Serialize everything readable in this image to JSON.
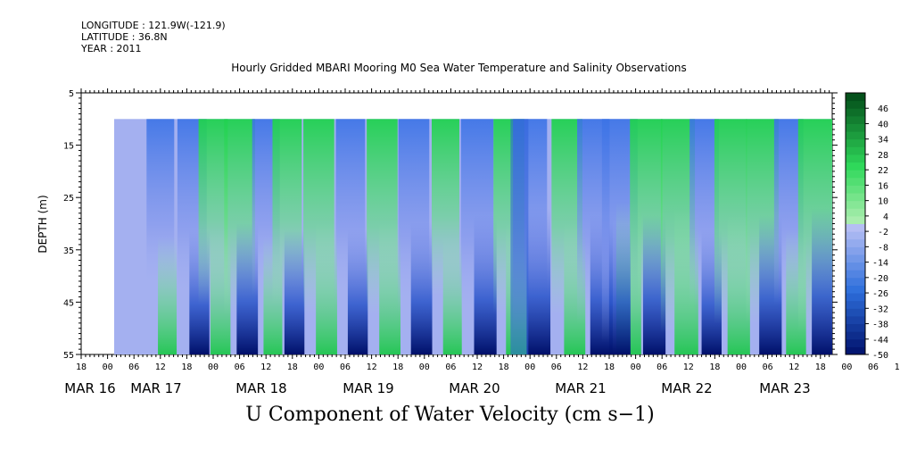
{
  "header": {
    "longitude": "LONGITUDE : 121.9W(-121.9)",
    "latitude": "LATITUDE : 36.8N",
    "year": "YEAR : 2011"
  },
  "chart_data": {
    "type": "heatmap",
    "title": "Hourly Gridded MBARI Mooring M0 Sea Water Temperature and Salinity Observations",
    "subtitle": "U Component of Water Velocity (cm s−1)",
    "ylabel": "DEPTH (m)",
    "ylim": [
      5,
      55
    ],
    "y_inverted": true,
    "y_ticks": [
      "5",
      "15",
      "25",
      "35",
      "45",
      "55"
    ],
    "x_hour_ticks": [
      "18",
      "00",
      "06",
      "12",
      "18",
      "00",
      "06",
      "12",
      "18",
      "00",
      "06",
      "12",
      "18",
      "00",
      "06",
      "12",
      "18",
      "00",
      "06",
      "12",
      "18",
      "00",
      "06",
      "12",
      "18",
      "00",
      "06",
      "12",
      "18",
      "00",
      "06",
      "12",
      "18"
    ],
    "x_date_labels": [
      "MAR 16",
      "MAR 17",
      "MAR 18",
      "MAR 19",
      "MAR 20",
      "MAR 21",
      "MAR 22",
      "MAR 23"
    ],
    "data_depth_range": [
      10,
      55
    ],
    "colorbar": {
      "ticks": [
        "46",
        "40",
        "34",
        "28",
        "22",
        "16",
        "10",
        "4",
        "-2",
        "-8",
        "-14",
        "-20",
        "-26",
        "-32",
        "-38",
        "-44",
        "-50"
      ],
      "range": [
        -50,
        52
      ],
      "step": 3,
      "colors": {
        "neg_dark": "#00106a",
        "neg_mid": "#2e6fdc",
        "neg_light": "#b8c0f4",
        "pos_light": "#b8f0b8",
        "pos_mid": "#2fd85a",
        "pos_dark": "#024a18"
      }
    },
    "bands": [
      {
        "day": 16.5,
        "surface": "neg",
        "strength": 0.5
      },
      {
        "day": 16.8,
        "surface": "neg",
        "strength": 0.6
      },
      {
        "day": 17.0,
        "surface": "pos",
        "strength": 0.6
      },
      {
        "day": 17.25,
        "surface": "pos",
        "strength": 0.7
      },
      {
        "day": 17.5,
        "surface": "neg",
        "strength": 0.5
      },
      {
        "day": 17.7,
        "surface": "pos",
        "strength": 0.6
      },
      {
        "day": 18.0,
        "surface": "pos",
        "strength": 0.7
      },
      {
        "day": 18.3,
        "surface": "neg",
        "strength": 0.6
      },
      {
        "day": 18.6,
        "surface": "pos",
        "strength": 0.7
      },
      {
        "day": 18.9,
        "surface": "neg",
        "strength": 0.7
      },
      {
        "day": 19.2,
        "surface": "pos",
        "strength": 0.5
      },
      {
        "day": 19.5,
        "surface": "neg",
        "strength": 0.8
      },
      {
        "day": 19.8,
        "surface": "pos",
        "strength": 0.7
      },
      {
        "day": 20.0,
        "surface": "neg",
        "strength": 0.9
      },
      {
        "day": 20.35,
        "surface": "pos",
        "strength": 0.7
      },
      {
        "day": 20.6,
        "surface": "neg",
        "strength": 0.8
      },
      {
        "day": 20.85,
        "surface": "neg",
        "strength": 1.0
      },
      {
        "day": 21.1,
        "surface": "pos",
        "strength": 0.8
      },
      {
        "day": 21.4,
        "surface": "pos",
        "strength": 0.9
      },
      {
        "day": 21.65,
        "surface": "neg",
        "strength": 0.6
      },
      {
        "day": 21.9,
        "surface": "pos",
        "strength": 0.8
      },
      {
        "day": 22.2,
        "surface": "pos",
        "strength": 0.8
      },
      {
        "day": 22.45,
        "surface": "neg",
        "strength": 0.6
      },
      {
        "day": 22.7,
        "surface": "pos",
        "strength": 0.9
      },
      {
        "day": 23.0,
        "surface": "neg",
        "strength": 0.6
      },
      {
        "day": 23.3,
        "surface": "pos",
        "strength": 0.9
      },
      {
        "day": 23.6,
        "surface": "neg",
        "strength": 0.7
      }
    ]
  }
}
